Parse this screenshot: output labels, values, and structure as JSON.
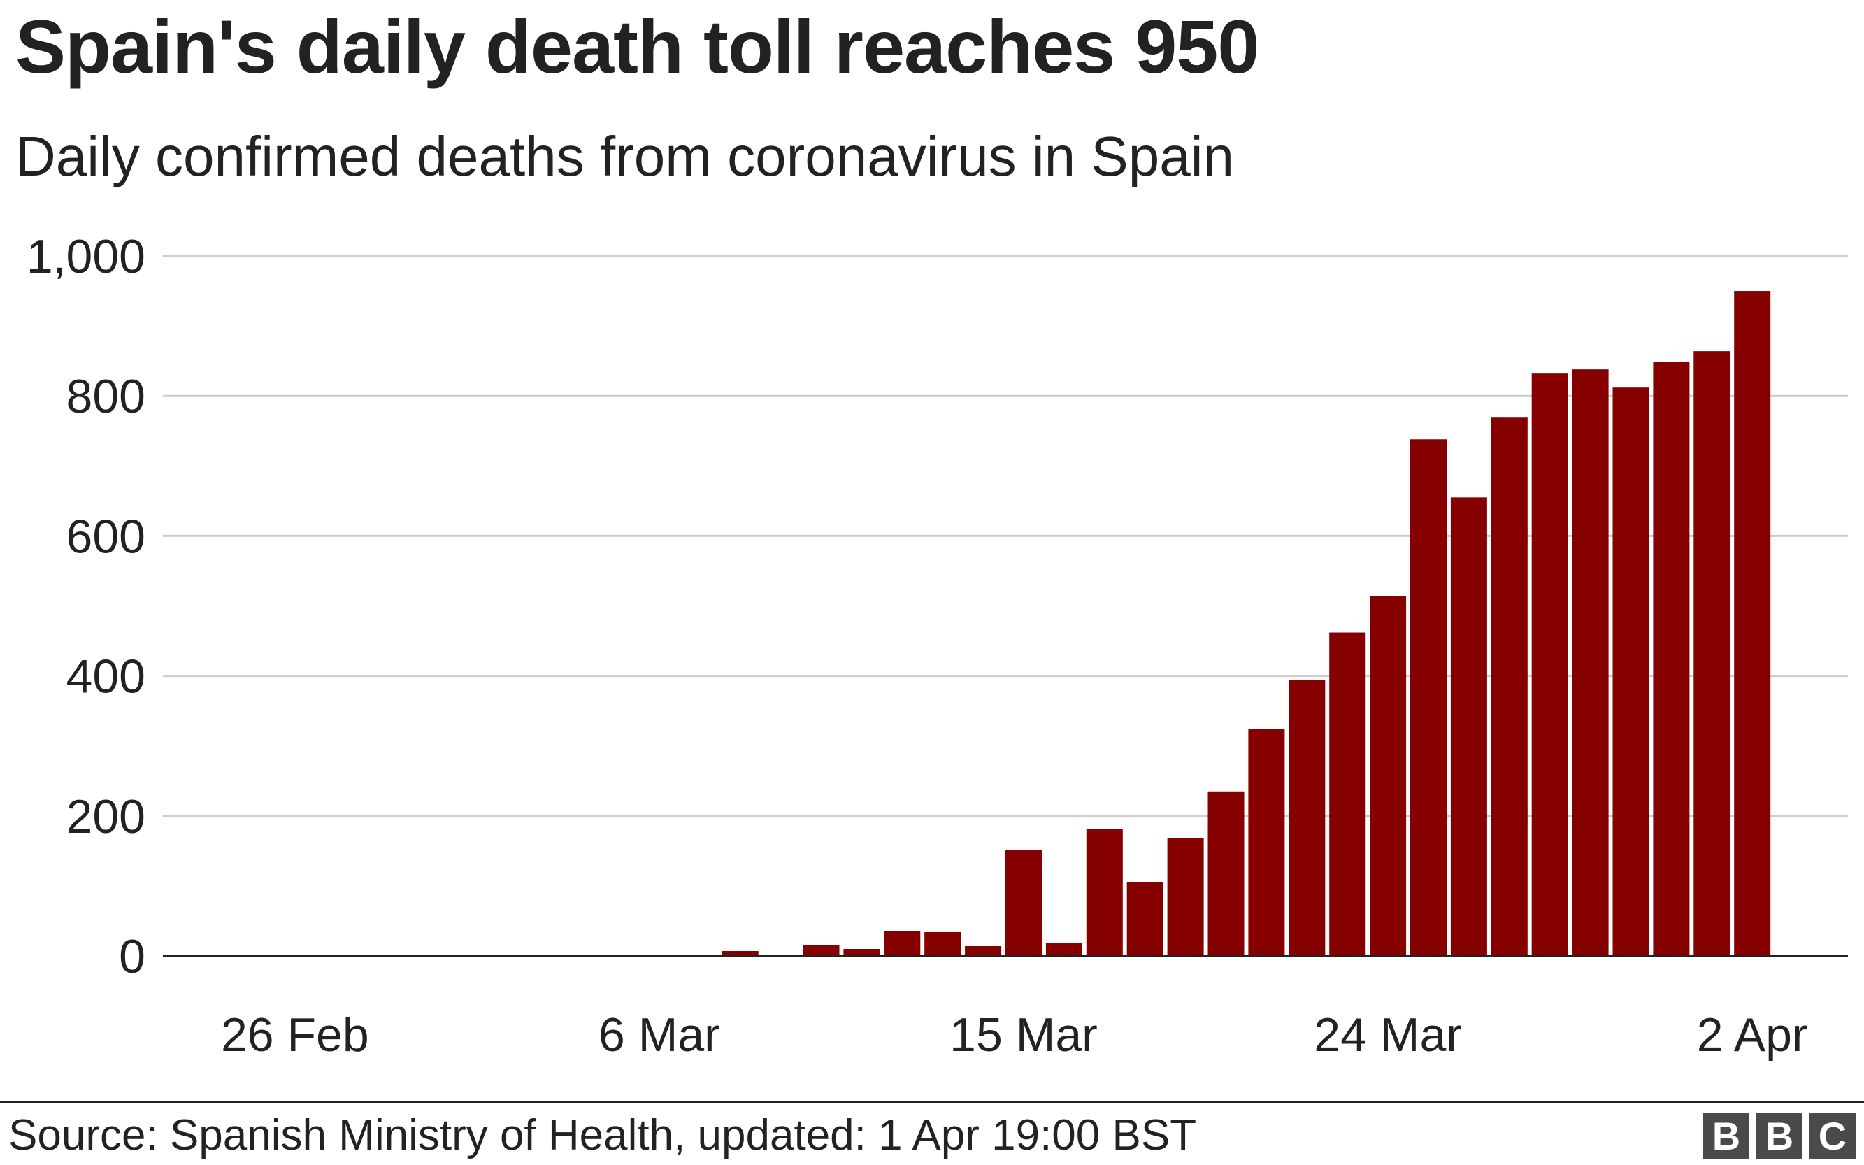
{
  "chart_data": {
    "type": "bar",
    "title": "Spain's daily death toll reaches 950",
    "subtitle": "Daily confirmed deaths from coronavirus in Spain",
    "xlabel": "",
    "ylabel": "",
    "ylim": [
      0,
      1000
    ],
    "yticks": [
      0,
      200,
      400,
      600,
      800,
      1000
    ],
    "ytick_labels": [
      "0",
      "200",
      "400",
      "600",
      "800",
      "1,000"
    ],
    "xtick_labels": [
      "26 Feb",
      "6 Mar",
      "15 Mar",
      "24 Mar",
      "2 Apr"
    ],
    "grid": true,
    "color": "#870000",
    "categories": [
      "24 Feb",
      "25 Feb",
      "26 Feb",
      "27 Feb",
      "28 Feb",
      "29 Feb",
      "1 Mar",
      "2 Mar",
      "3 Mar",
      "4 Mar",
      "5 Mar",
      "6 Mar",
      "7 Mar",
      "8 Mar",
      "9 Mar",
      "10 Mar",
      "11 Mar",
      "12 Mar",
      "13 Mar",
      "14 Mar",
      "15 Mar",
      "16 Mar",
      "17 Mar",
      "18 Mar",
      "19 Mar",
      "20 Mar",
      "21 Mar",
      "22 Mar",
      "23 Mar",
      "24 Mar",
      "25 Mar",
      "26 Mar",
      "27 Mar",
      "28 Mar",
      "29 Mar",
      "30 Mar",
      "31 Mar",
      "1 Apr",
      "2 Apr"
    ],
    "values": [
      0,
      0,
      0,
      0,
      0,
      0,
      0,
      0,
      0,
      0,
      0,
      0,
      2,
      7,
      0,
      16,
      10,
      35,
      34,
      14,
      151,
      19,
      181,
      105,
      168,
      235,
      324,
      394,
      462,
      514,
      738,
      655,
      769,
      832,
      838,
      812,
      849,
      864,
      950
    ]
  },
  "footer": {
    "source": "Source: Spanish Ministry of Health, updated: 1 Apr  19:00 BST",
    "logo": [
      "B",
      "B",
      "C"
    ]
  }
}
